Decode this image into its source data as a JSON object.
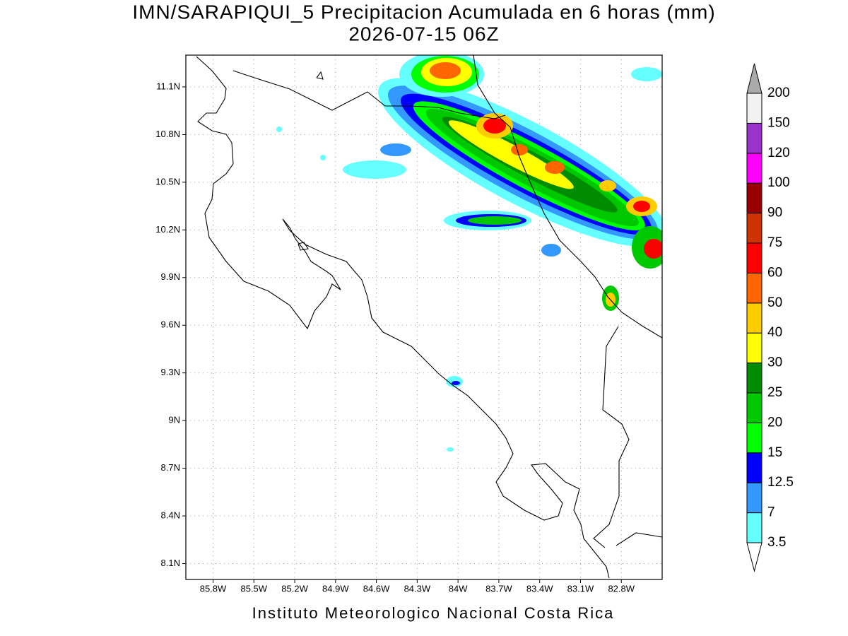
{
  "title": "IMN/SARAPIQUI_5 Precipitacion Acumulada en 6 horas (mm)",
  "subtitle": "2026-07-15 06Z",
  "footer": "Instituto Meteorologico Nacional Costa Rica",
  "map": {
    "xlim": [
      -86,
      -82.5
    ],
    "ylim": [
      8,
      11.3
    ],
    "grid": true,
    "xticks": [
      {
        "value": -85.8,
        "label": "85.8W"
      },
      {
        "value": -85.5,
        "label": "85.5W"
      },
      {
        "value": -85.2,
        "label": "85.2W"
      },
      {
        "value": -84.9,
        "label": "84.9W"
      },
      {
        "value": -84.6,
        "label": "84.6W"
      },
      {
        "value": -84.3,
        "label": "84.3W"
      },
      {
        "value": -84,
        "label": "84W"
      },
      {
        "value": -83.7,
        "label": "83.7W"
      },
      {
        "value": -83.4,
        "label": "83.4W"
      },
      {
        "value": -83.1,
        "label": "83.1W"
      },
      {
        "value": -82.8,
        "label": "82.8W"
      }
    ],
    "yticks": [
      {
        "value": 8.1,
        "label": "8.1N"
      },
      {
        "value": 8.4,
        "label": "8.4N"
      },
      {
        "value": 8.7,
        "label": "8.7N"
      },
      {
        "value": 9,
        "label": "9N"
      },
      {
        "value": 9.3,
        "label": "9.3N"
      },
      {
        "value": 9.6,
        "label": "9.6N"
      },
      {
        "value": 9.9,
        "label": "9.9N"
      },
      {
        "value": 10.2,
        "label": "10.2N"
      },
      {
        "value": 10.5,
        "label": "10.5N"
      },
      {
        "value": 10.8,
        "label": "10.8N"
      },
      {
        "value": 11.1,
        "label": "11.1N"
      }
    ]
  },
  "colorbar": {
    "levels": [
      3.5,
      7,
      12.5,
      15,
      20,
      25,
      30,
      40,
      50,
      60,
      75,
      90,
      100,
      120,
      150,
      200
    ],
    "colors": [
      "#66ffff",
      "#3399ff",
      "#0000ff",
      "#00ff00",
      "#00c800",
      "#008c00",
      "#ffff00",
      "#ffcc00",
      "#ff6600",
      "#ff0000",
      "#cc3300",
      "#990000",
      "#ff00ff",
      "#9933cc",
      "#f2f2f2"
    ],
    "under_color": "#ffffff",
    "over_color": "#aaaaaa"
  }
}
